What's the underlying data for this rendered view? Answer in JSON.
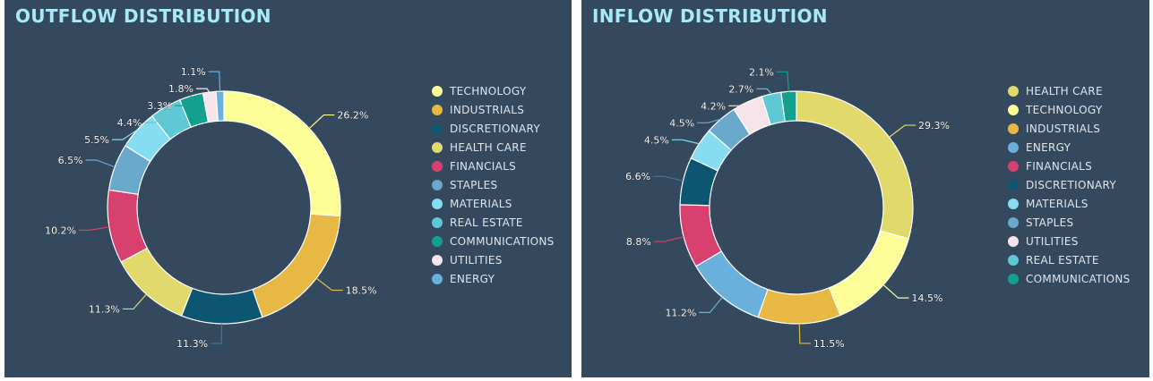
{
  "chart_data": [
    {
      "type": "pie",
      "title": "OUTFLOW DISTRIBUTION",
      "unit": "%",
      "categories": [
        "TECHNOLOGY",
        "INDUSTRIALS",
        "DISCRETIONARY",
        "HEALTH CARE",
        "FINANCIALS",
        "STAPLES",
        "MATERIALS",
        "REAL ESTATE",
        "COMMUNICATIONS",
        "UTILITIES",
        "ENERGY"
      ],
      "values": [
        26.2,
        18.5,
        11.3,
        11.3,
        10.2,
        6.5,
        5.5,
        4.4,
        3.3,
        1.8,
        1.1
      ],
      "labels": [
        "26.2%",
        "18.5%",
        "11.3%",
        "11.3%",
        "10.2%",
        "6.5%",
        "5.5%",
        "4.4%",
        "3.3%",
        "1.8%",
        "1.1%"
      ],
      "colors": [
        "#fdfd98",
        "#e7b944",
        "#0d5672",
        "#e1d96b",
        "#d8406f",
        "#6aa8cc",
        "#86dcf0",
        "#5ec8d4",
        "#12a08f",
        "#f7e4ea",
        "#6ab0dc"
      ],
      "donut": true,
      "legend": "right"
    },
    {
      "type": "pie",
      "title": "INFLOW DISTRIBUTION",
      "unit": "%",
      "categories": [
        "HEALTH CARE",
        "TECHNOLOGY",
        "INDUSTRIALS",
        "ENERGY",
        "FINANCIALS",
        "DISCRETIONARY",
        "MATERIALS",
        "STAPLES",
        "UTILITIES",
        "REAL ESTATE",
        "COMMUNICATIONS"
      ],
      "values": [
        29.3,
        14.5,
        11.5,
        11.2,
        8.8,
        6.6,
        4.5,
        4.5,
        4.2,
        2.7,
        2.1
      ],
      "labels": [
        "29.3%",
        "14.5%",
        "11.5%",
        "11.2%",
        "8.8%",
        "6.6%",
        "4.5%",
        "4.5%",
        "4.2%",
        "2.7%",
        "2.1%"
      ],
      "colors": [
        "#e1d96b",
        "#fdfd98",
        "#e7b944",
        "#6ab0dc",
        "#d8406f",
        "#0d5672",
        "#86dcf0",
        "#6aa8cc",
        "#f7e4ea",
        "#5ec8d4",
        "#12a08f"
      ],
      "donut": true,
      "legend": "right"
    }
  ]
}
